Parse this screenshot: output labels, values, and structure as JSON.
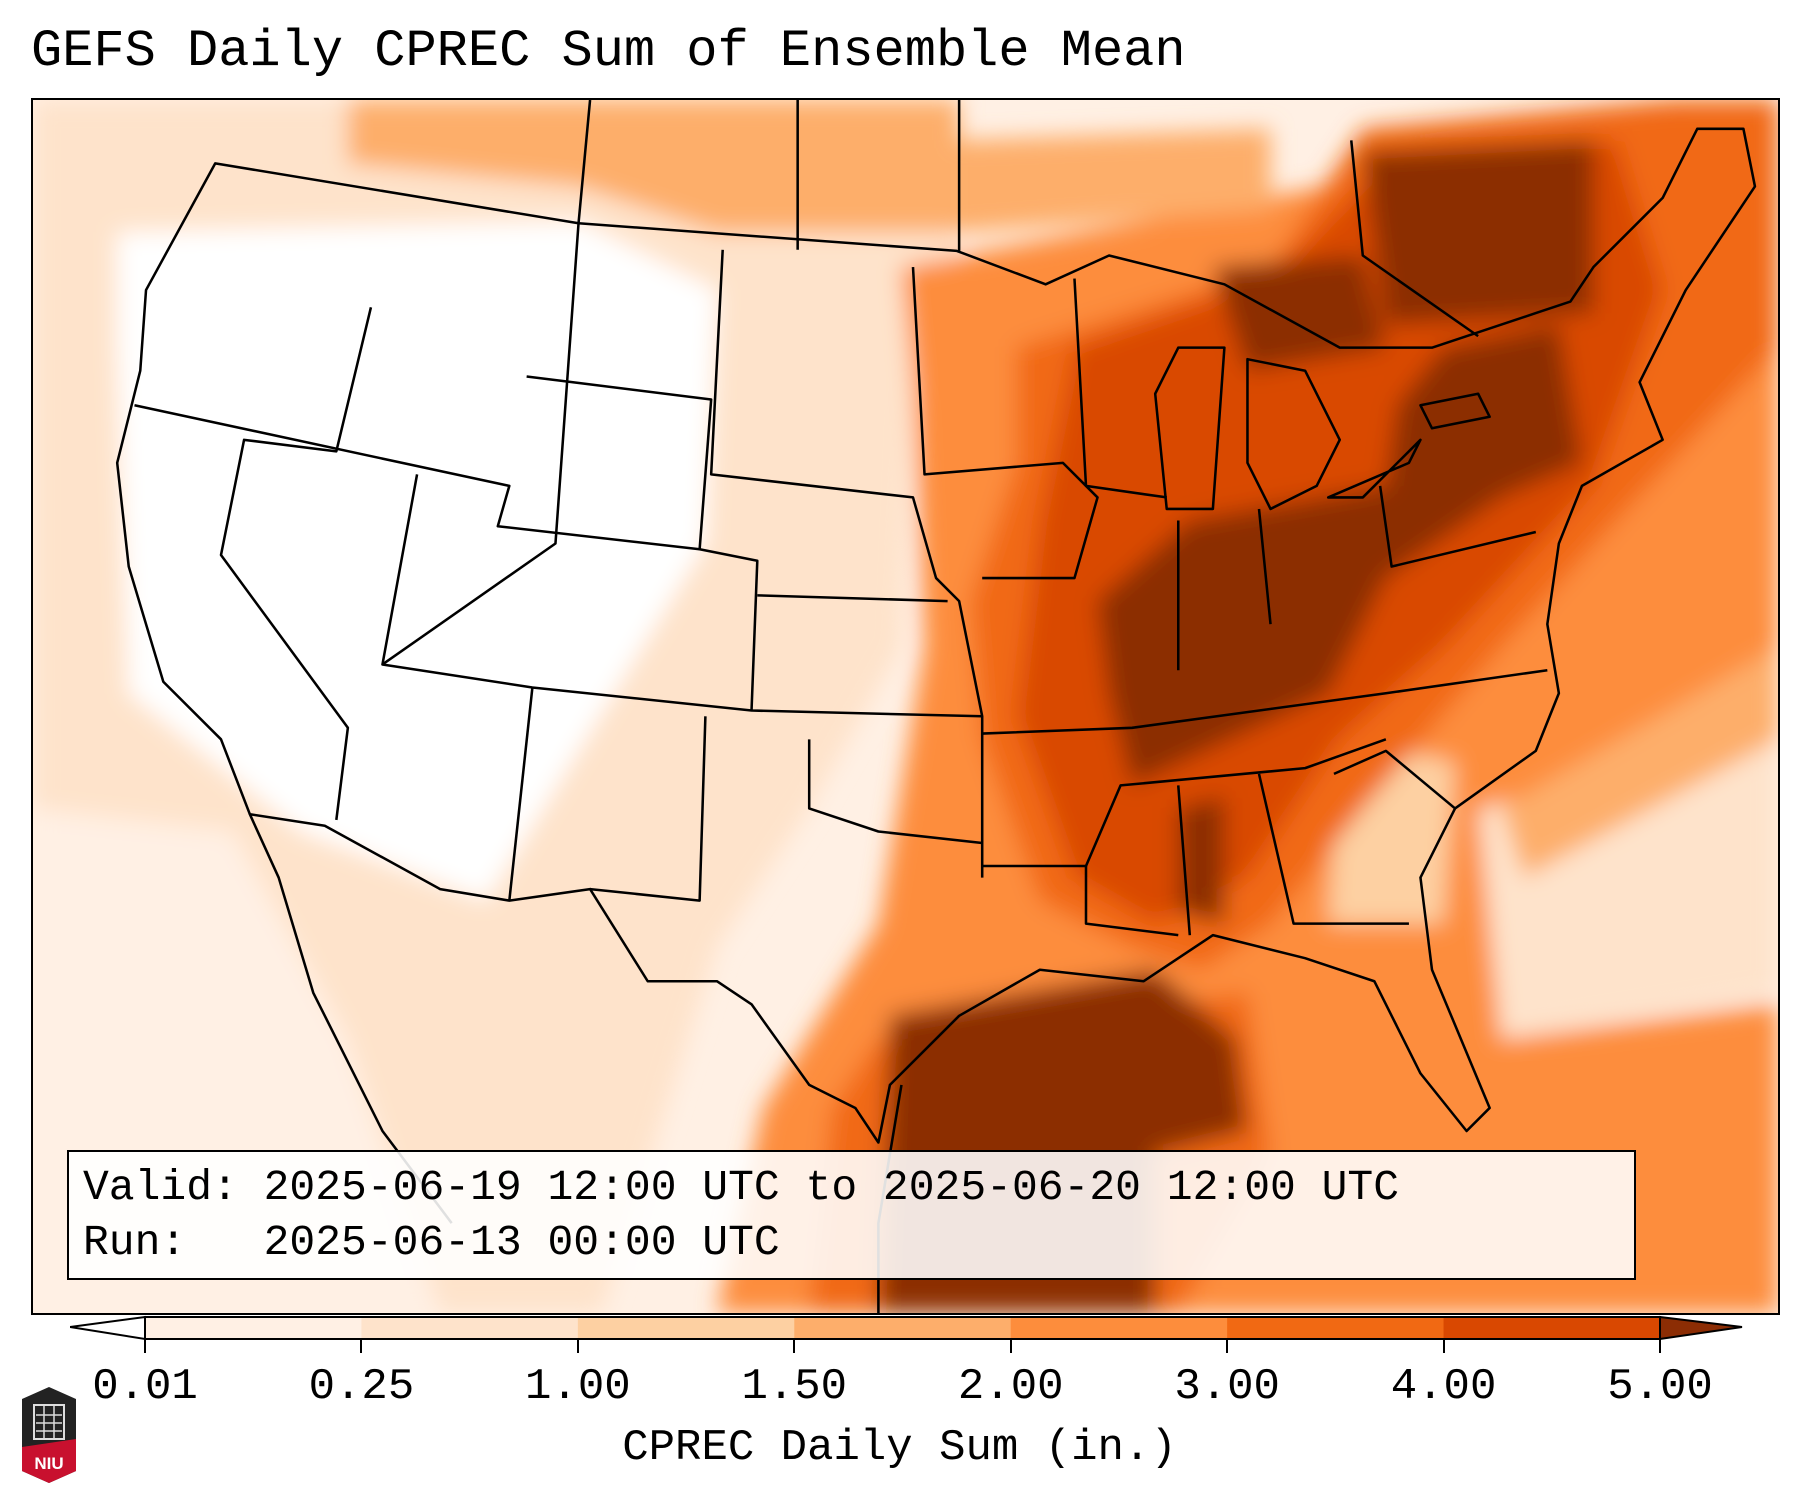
{
  "title": "GEFS Daily CPREC Sum of Ensemble Mean",
  "info": {
    "valid_line": "Valid: 2025-06-19 12:00 UTC to 2025-06-20 12:00 UTC",
    "run_line": "Run:   2025-06-13 00:00 UTC"
  },
  "colorbar": {
    "label": "CPREC Daily Sum (in.)",
    "ticks": [
      "0.01",
      "0.25",
      "1.00",
      "1.50",
      "2.00",
      "3.00",
      "4.00",
      "5.00"
    ],
    "under_color": "#ffffff",
    "colors": [
      "#fff0e4",
      "#fee3cb",
      "#fdd0a2",
      "#fdae6b",
      "#fd8d3c",
      "#f16913",
      "#d94801"
    ],
    "over_color": "#8c2d04"
  },
  "logo": {
    "text": "NIU"
  }
}
